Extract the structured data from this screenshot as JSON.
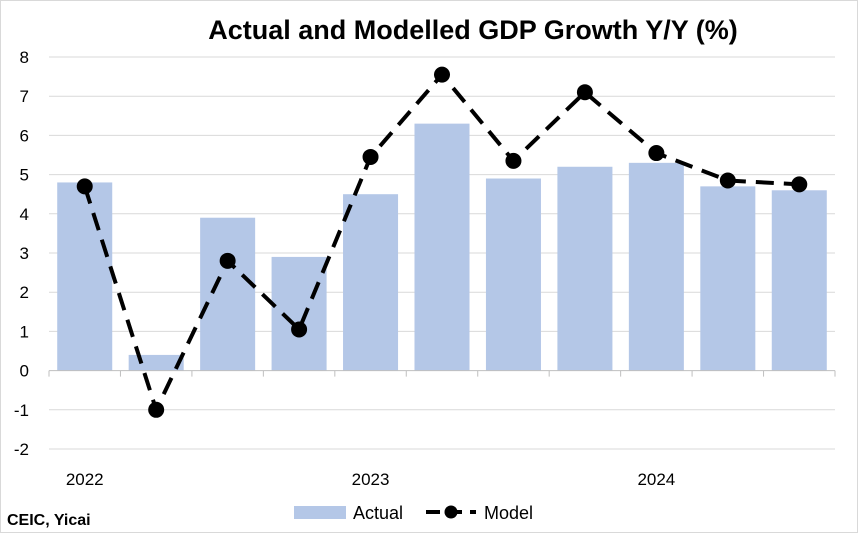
{
  "chart_data": {
    "type": "bar",
    "title": "Actual and Modelled GDP Growth Y/Y (%)",
    "xlabel": "",
    "ylabel": "",
    "ylim": [
      -2,
      8
    ],
    "yticks": [
      "-2",
      "-1",
      "0",
      "1",
      "2",
      "3",
      "4",
      "5",
      "6",
      "7",
      "8"
    ],
    "x_tick_labels": [
      {
        "label": "2022",
        "at_index": 0
      },
      {
        "label": "2023",
        "at_index": 4
      },
      {
        "label": "2024",
        "at_index": 8
      }
    ],
    "categories_count": 11,
    "series": [
      {
        "name": "Actual",
        "type": "bar",
        "color": "#b4c7e7",
        "values": [
          4.8,
          0.4,
          3.9,
          2.9,
          4.5,
          6.3,
          4.9,
          5.2,
          5.3,
          4.7,
          4.6
        ]
      },
      {
        "name": "Model",
        "type": "line",
        "style": "dashed",
        "marker": "circle",
        "color": "#000000",
        "values": [
          4.7,
          -1.0,
          2.8,
          1.05,
          5.45,
          7.55,
          5.35,
          7.1,
          5.55,
          4.85,
          4.75
        ]
      }
    ],
    "grid": true,
    "legend": "bottom-center",
    "source": "CEIC, Yicai"
  }
}
